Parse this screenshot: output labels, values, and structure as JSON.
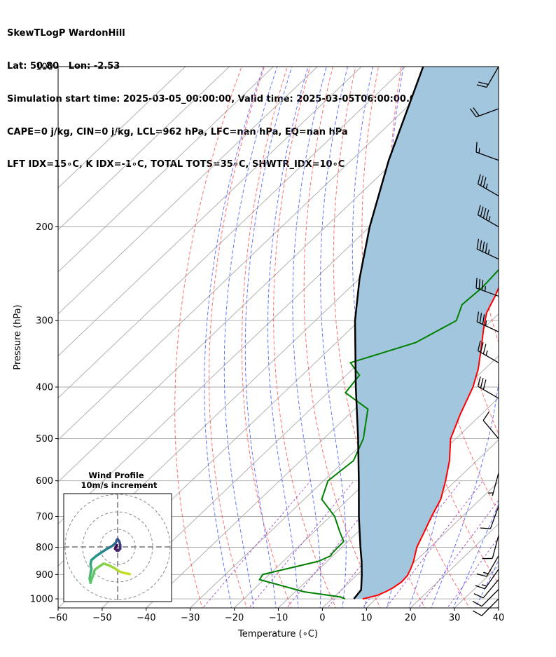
{
  "header": {
    "line1": "SkewTLogP WardonHill",
    "line2": "Lat: 50.80   Lon: -2.53",
    "line3": "Simulation start time: 2025-03-05_00:00:00, Valid time: 2025-03-05T06:00:00.00",
    "line4": "CAPE=0 j/kg, CIN=0 j/kg, LCL=962 hPa, LFC=nan hPa, EQ=nan hPa",
    "line5": "LFT IDX=15∘C, K IDX=-1∘C, TOTAL TOTS=35∘C, SHWTR_IDX=10∘C"
  },
  "chart_data": {
    "type": "line",
    "subtype": "skew-t log-p",
    "xlabel": "Temperature (∘C)",
    "ylabel": "Pressure (hPa)",
    "xlim": [
      -60,
      40
    ],
    "ylim": [
      1040,
      100
    ],
    "x_ticks": [
      -60,
      -50,
      -40,
      -30,
      -20,
      -10,
      0,
      10,
      20,
      30,
      40
    ],
    "y_ticks": [
      100,
      200,
      300,
      400,
      500,
      600,
      700,
      800,
      900,
      1000
    ],
    "grid": true,
    "colors": {
      "temperature": "#ff0000",
      "dewpoint": "#008000",
      "parcel": "#000000",
      "cin_cape_fill": "#a3c6df",
      "dry_adiabat": "#ff5555",
      "moist_adiabat": "#4a5aff",
      "mixing_ratio": "#9030c0",
      "isotherm": "#aaaaaa"
    },
    "series": [
      {
        "name": "temperature",
        "points": [
          [
            1000,
            7.0
          ],
          [
            985,
            9.5
          ],
          [
            970,
            10.5
          ],
          [
            955,
            11.2
          ],
          [
            930,
            11.8
          ],
          [
            905,
            11.6
          ],
          [
            880,
            10.8
          ],
          [
            850,
            9.6
          ],
          [
            800,
            7.0
          ],
          [
            750,
            5.1
          ],
          [
            700,
            3.0
          ],
          [
            650,
            1.0
          ],
          [
            600,
            -2.3
          ],
          [
            550,
            -6.2
          ],
          [
            500,
            -11.2
          ],
          [
            450,
            -14.8
          ],
          [
            400,
            -18.4
          ],
          [
            370,
            -21.5
          ],
          [
            340,
            -25.5
          ],
          [
            310,
            -30.0
          ],
          [
            290,
            -33.0
          ],
          [
            270,
            -35.0
          ],
          [
            250,
            -37.5
          ],
          [
            230,
            -41.5
          ],
          [
            210,
            -44.5
          ],
          [
            200,
            -46.0
          ],
          [
            180,
            -48.5
          ],
          [
            165,
            -50.0
          ],
          [
            150,
            -52.0
          ],
          [
            135,
            -54.5
          ],
          [
            120,
            -56.5
          ],
          [
            110,
            -58.0
          ],
          [
            100,
            -59.5
          ]
        ]
      },
      {
        "name": "dewpoint",
        "points": [
          [
            1000,
            3.0
          ],
          [
            992,
            1.5
          ],
          [
            970,
            -8.0
          ],
          [
            920,
            -21.0
          ],
          [
            900,
            -21.5
          ],
          [
            850,
            -12.0
          ],
          [
            830,
            -10.5
          ],
          [
            820,
            -10.8
          ],
          [
            780,
            -11.0
          ],
          [
            750,
            -14.0
          ],
          [
            700,
            -19.0
          ],
          [
            650,
            -26.0
          ],
          [
            600,
            -29.0
          ],
          [
            550,
            -28.0
          ],
          [
            500,
            -31.0
          ],
          [
            440,
            -37.0
          ],
          [
            410,
            -46.0
          ],
          [
            380,
            -47.0
          ],
          [
            360,
            -52.0
          ],
          [
            330,
            -42.0
          ],
          [
            300,
            -38.0
          ],
          [
            280,
            -40.5
          ],
          [
            260,
            -40.0
          ],
          [
            240,
            -40.5
          ],
          [
            210,
            -44.0
          ],
          [
            190,
            -48.0
          ],
          [
            170,
            -49.0
          ],
          [
            150,
            -50.0
          ],
          [
            135,
            -51.5
          ],
          [
            120,
            -55.0
          ],
          [
            100,
            -60.0
          ]
        ]
      },
      {
        "name": "parcel",
        "points": [
          [
            1000,
            5.0
          ],
          [
            962,
            4.5
          ],
          [
            900,
            1.0
          ],
          [
            850,
            -2.2
          ],
          [
            800,
            -5.8
          ],
          [
            700,
            -13.5
          ],
          [
            600,
            -22.0
          ],
          [
            500,
            -32.2
          ],
          [
            400,
            -45.0
          ],
          [
            300,
            -61.0
          ],
          [
            250,
            -70.0
          ],
          [
            200,
            -80.0
          ],
          [
            150,
            -91.5
          ],
          [
            100,
            -106.0
          ]
        ]
      }
    ],
    "wind_barbs": [
      {
        "p": 100,
        "speed_kt": 20,
        "dir": 210
      },
      {
        "p": 120,
        "speed_kt": 20,
        "dir": 250
      },
      {
        "p": 150,
        "speed_kt": 15,
        "dir": 290
      },
      {
        "p": 175,
        "speed_kt": 35,
        "dir": 300
      },
      {
        "p": 200,
        "speed_kt": 45,
        "dir": 300
      },
      {
        "p": 230,
        "speed_kt": 45,
        "dir": 295
      },
      {
        "p": 270,
        "speed_kt": 35,
        "dir": 290
      },
      {
        "p": 315,
        "speed_kt": 35,
        "dir": 295
      },
      {
        "p": 360,
        "speed_kt": 35,
        "dir": 300
      },
      {
        "p": 420,
        "speed_kt": 30,
        "dir": 300
      },
      {
        "p": 500,
        "speed_kt": 10,
        "dir": 320
      },
      {
        "p": 580,
        "speed_kt": 5,
        "dir": 195
      },
      {
        "p": 670,
        "speed_kt": 10,
        "dir": 200
      },
      {
        "p": 760,
        "speed_kt": 10,
        "dir": 195
      },
      {
        "p": 830,
        "speed_kt": 15,
        "dir": 210
      },
      {
        "p": 880,
        "speed_kt": 15,
        "dir": 215
      },
      {
        "p": 920,
        "speed_kt": 10,
        "dir": 220
      },
      {
        "p": 960,
        "speed_kt": 10,
        "dir": 225
      },
      {
        "p": 1000,
        "speed_kt": 10,
        "dir": 225
      }
    ],
    "hodograph": {
      "title_line1": "Wind Profile",
      "title_line2": "10m/s increment",
      "ring_step_ms": 10,
      "rings": 3,
      "points_uv": [
        [
          -0.5,
          1.0
        ],
        [
          -1.5,
          -1.0
        ],
        [
          -0.5,
          -2.0
        ],
        [
          0.5,
          -2.0
        ],
        [
          1.5,
          -1.0
        ],
        [
          1.5,
          1.0
        ],
        [
          1.0,
          3.0
        ],
        [
          0.0,
          4.5
        ],
        [
          -0.5,
          4.0
        ],
        [
          -1.0,
          2.5
        ],
        [
          -2.5,
          1.0
        ],
        [
          -4.0,
          0.0
        ],
        [
          -6.0,
          -1.0
        ],
        [
          -9.0,
          -3.0
        ],
        [
          -12.0,
          -5.0
        ],
        [
          -15.0,
          -7.5
        ],
        [
          -15.5,
          -10.0
        ],
        [
          -15.0,
          -12.5
        ],
        [
          -15.5,
          -15.0
        ],
        [
          -16.0,
          -18.0
        ],
        [
          -15.5,
          -20.5
        ],
        [
          -13.0,
          -13.0
        ],
        [
          -11.0,
          -11.5
        ],
        [
          -8.0,
          -9.5
        ],
        [
          -5.0,
          -10.5
        ],
        [
          -2.0,
          -12.0
        ],
        [
          1.0,
          -14.0
        ],
        [
          4.0,
          -15.0
        ],
        [
          7.0,
          -15.5
        ]
      ]
    }
  }
}
